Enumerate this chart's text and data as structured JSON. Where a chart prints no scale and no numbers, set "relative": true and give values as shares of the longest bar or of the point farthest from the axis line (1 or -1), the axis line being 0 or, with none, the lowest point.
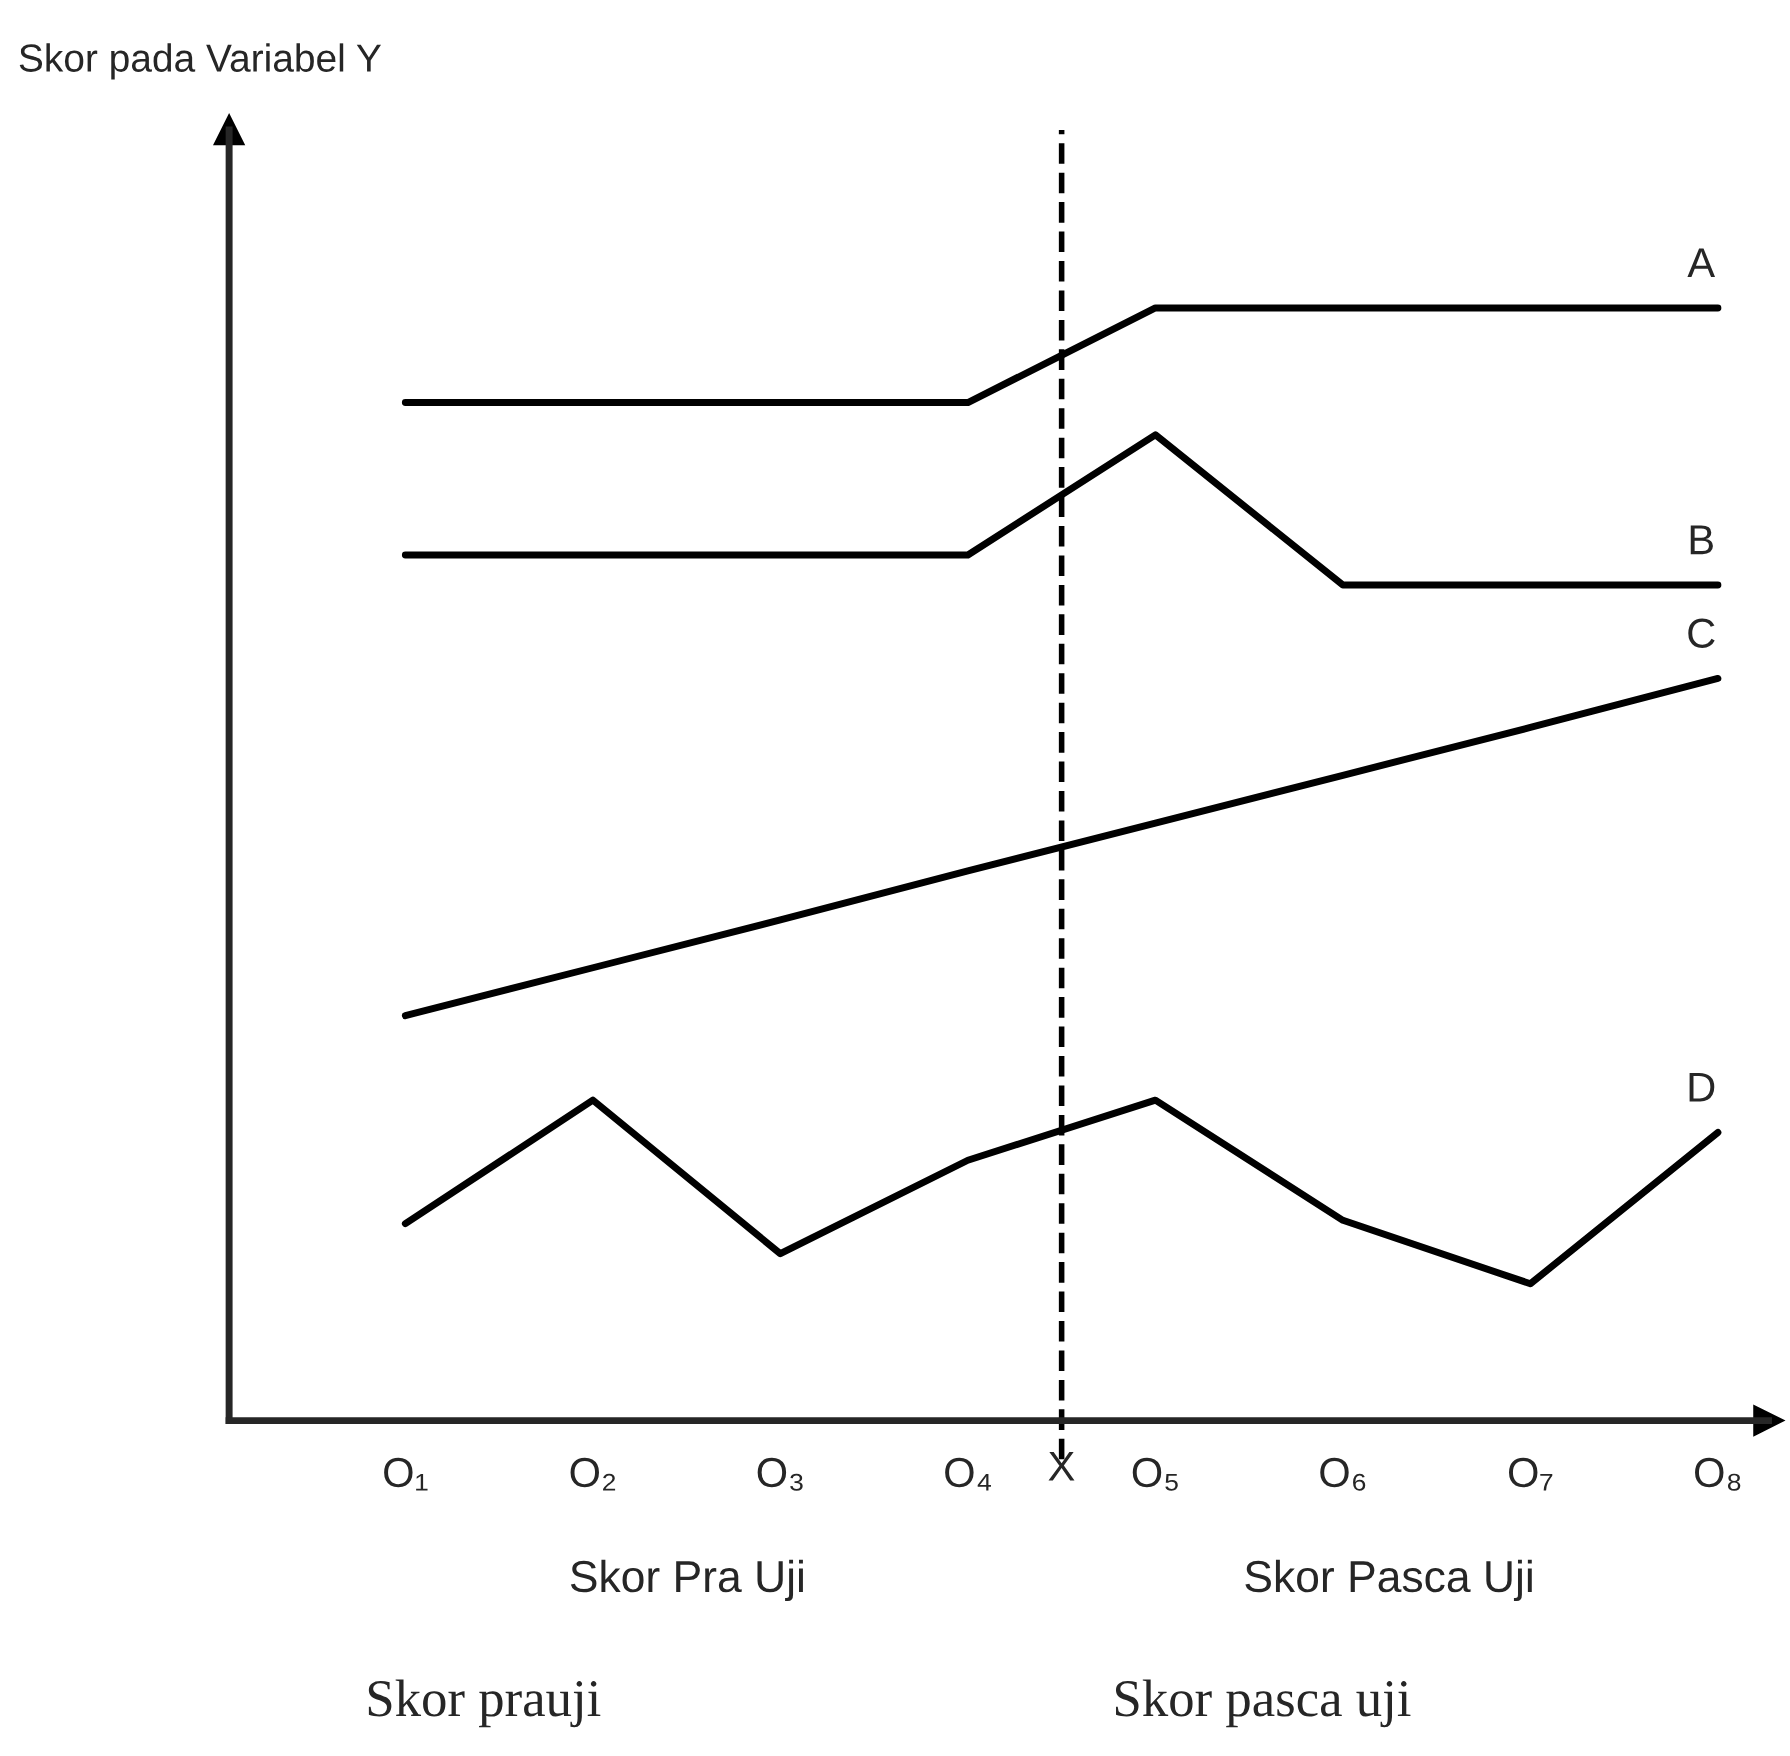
{
  "chart_data": {
    "type": "line",
    "relative": true,
    "categories": [
      "O₁",
      "O₂",
      "O₃",
      "O₄",
      "O₅",
      "O₆",
      "O₇",
      "O₈"
    ],
    "series": [
      {
        "name": "A",
        "color": "#000000",
        "values": [
          0.915,
          0.915,
          0.915,
          0.915,
          1.0,
          1.0,
          1.0,
          1.0
        ]
      },
      {
        "name": "B",
        "color": "#000000",
        "values": [
          0.778,
          0.778,
          0.778,
          0.778,
          0.886,
          0.751,
          0.751,
          0.751
        ]
      },
      {
        "name": "C",
        "color": "#000000",
        "values": [
          0.364,
          0.407,
          0.45,
          0.494,
          0.537,
          0.58,
          0.623,
          0.667
        ]
      },
      {
        "name": "D",
        "color": "#000000",
        "values": [
          0.177,
          0.288,
          0.15,
          0.234,
          0.288,
          0.18,
          0.123,
          0.259
        ]
      }
    ],
    "annotations": [
      "Skor pada Variabel Y",
      "X",
      "Skor Pra Uji",
      "Skor Pasca Uji",
      "Skor prauji",
      "Skor pasca uji"
    ],
    "grid": false,
    "legend": false,
    "marker": "none",
    "line_style": "solid"
  }
}
